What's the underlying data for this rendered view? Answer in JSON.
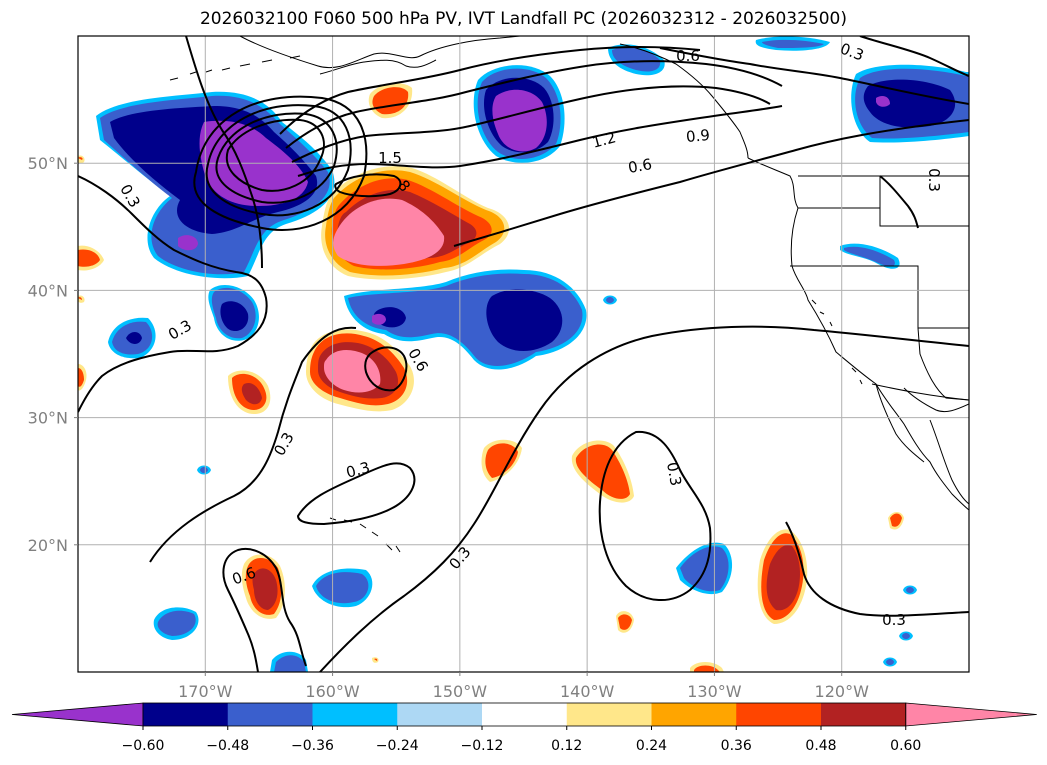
{
  "chart_data": {
    "type": "contour-map",
    "title": "2026032100 F060 500 hPa PV, IVT Landfall PC (2026032312 - 2026032500)",
    "projection": "PlateCarree",
    "xlim": [
      -180,
      -110
    ],
    "ylim": [
      10,
      60
    ],
    "x_ticks": [
      -170,
      -160,
      -150,
      -140,
      -130,
      -120
    ],
    "x_tick_labels": [
      "170°W",
      "160°W",
      "150°W",
      "140°W",
      "130°W",
      "120°W"
    ],
    "y_ticks": [
      20,
      30,
      40,
      50
    ],
    "y_tick_labels": [
      "20°N",
      "30°N",
      "40°N",
      "50°N"
    ],
    "grid": true,
    "colorbar": {
      "orientation": "horizontal",
      "extend": "both",
      "levels": [
        -0.6,
        -0.48,
        -0.36,
        -0.24,
        -0.12,
        0.12,
        0.24,
        0.36,
        0.48,
        0.6
      ],
      "tick_labels": [
        "−0.60",
        "−0.48",
        "−0.36",
        "−0.24",
        "−0.12",
        "0.12",
        "0.24",
        "0.36",
        "0.48",
        "0.60"
      ],
      "colors": [
        "#9932cc",
        "#00008b",
        "#3a5fcd",
        "#00bfff",
        "#add8f4",
        "#ffffff",
        "#ffe78a",
        "#ffa500",
        "#ff4500",
        "#b22222",
        "#ff85a7"
      ]
    },
    "filled_anomalies": [
      {
        "center": [
          -166,
          51
        ],
        "sign": "negative",
        "peak": -0.66
      },
      {
        "center": [
          -144,
          54
        ],
        "sign": "negative",
        "peak": -0.66
      },
      {
        "center": [
          -114,
          54
        ],
        "sign": "negative",
        "peak": -0.66
      },
      {
        "center": [
          -160,
          45
        ],
        "sign": "positive",
        "peak": 0.66
      },
      {
        "center": [
          -156,
          36
        ],
        "sign": "positive",
        "peak": 0.66
      },
      {
        "center": [
          -124,
          16
        ],
        "sign": "positive",
        "peak": 0.54
      },
      {
        "center": [
          -165,
          16
        ],
        "sign": "positive",
        "peak": 0.54
      },
      {
        "center": [
          -144,
          38
        ],
        "sign": "negative",
        "peak": -0.54
      }
    ],
    "contour_lines": {
      "variable": "500 hPa PV",
      "levels": [
        0.3,
        0.6,
        0.9,
        1.2,
        1.5,
        1.8
      ],
      "labels": [
        "0.3",
        "0.3",
        "0.3",
        "0.3",
        "0.3",
        "0.3",
        "0.3",
        "0.3",
        "0.6",
        "0.6",
        "0.6",
        "0.6",
        "0.9",
        "1.2",
        "1.5",
        "8",
        "0.3",
        "0.6"
      ]
    }
  }
}
